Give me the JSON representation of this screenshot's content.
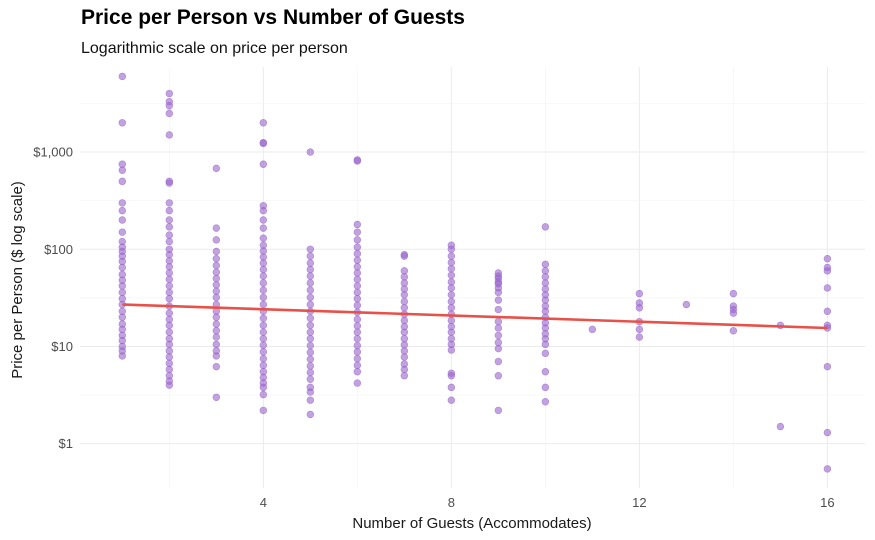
{
  "chart_data": {
    "type": "scatter",
    "title": "Price per Person vs Number of Guests",
    "subtitle": "Logarithmic scale on price per person",
    "xlabel": "Number of Guests (Accommodates)",
    "ylabel": "Price per Person ($ log scale)",
    "x_scale": "linear",
    "y_scale": "log10",
    "xlim": [
      0.1,
      16.8
    ],
    "ylim": [
      0.35,
      7500
    ],
    "x_ticks": [
      4,
      8,
      12,
      16
    ],
    "x_tick_labels": [
      "4",
      "8",
      "12",
      "16"
    ],
    "y_ticks": [
      1,
      10,
      100,
      1000
    ],
    "y_tick_labels": [
      "$1",
      "$10",
      "$100",
      "$1,000"
    ],
    "grid": true,
    "legend": "none",
    "point_color": "#9966CC",
    "trend_color": "#E8514A",
    "series": [
      {
        "kind": "points",
        "points": [
          [
            1,
            6000
          ],
          [
            1,
            2000
          ],
          [
            1,
            750
          ],
          [
            1,
            650
          ],
          [
            1,
            500
          ],
          [
            1,
            300
          ],
          [
            1,
            250
          ],
          [
            1,
            200
          ],
          [
            1,
            150
          ],
          [
            1,
            120
          ],
          [
            1,
            105
          ],
          [
            1,
            95
          ],
          [
            1,
            85
          ],
          [
            1,
            75
          ],
          [
            1,
            65
          ],
          [
            1,
            55
          ],
          [
            1,
            48
          ],
          [
            1,
            42
          ],
          [
            1,
            36
          ],
          [
            1,
            31
          ],
          [
            1,
            27
          ],
          [
            1,
            23
          ],
          [
            1,
            20
          ],
          [
            1,
            17
          ],
          [
            1,
            15
          ],
          [
            1,
            13
          ],
          [
            1,
            11.5
          ],
          [
            1,
            10
          ],
          [
            1,
            9
          ],
          [
            1,
            8
          ],
          [
            2,
            4000
          ],
          [
            2,
            3300
          ],
          [
            2,
            3000
          ],
          [
            2,
            2500
          ],
          [
            2,
            1500
          ],
          [
            2,
            500
          ],
          [
            2,
            480
          ],
          [
            2,
            300
          ],
          [
            2,
            250
          ],
          [
            2,
            200
          ],
          [
            2,
            170
          ],
          [
            2,
            140
          ],
          [
            2,
            120
          ],
          [
            2,
            100
          ],
          [
            2,
            88
          ],
          [
            2,
            76
          ],
          [
            2,
            66
          ],
          [
            2,
            57
          ],
          [
            2,
            49
          ],
          [
            2,
            42
          ],
          [
            2,
            36
          ],
          [
            2,
            31
          ],
          [
            2,
            26
          ],
          [
            2,
            22
          ],
          [
            2,
            19
          ],
          [
            2,
            16.5
          ],
          [
            2,
            14
          ],
          [
            2,
            12
          ],
          [
            2,
            10.5
          ],
          [
            2,
            9
          ],
          [
            2,
            7.8
          ],
          [
            2,
            6.7
          ],
          [
            2,
            5.8
          ],
          [
            2,
            5
          ],
          [
            2,
            4.4
          ],
          [
            2,
            4
          ],
          [
            3,
            680
          ],
          [
            3,
            165
          ],
          [
            3,
            125
          ],
          [
            3,
            95
          ],
          [
            3,
            80
          ],
          [
            3,
            68
          ],
          [
            3,
            58
          ],
          [
            3,
            50
          ],
          [
            3,
            43
          ],
          [
            3,
            37
          ],
          [
            3,
            32
          ],
          [
            3,
            27
          ],
          [
            3,
            23
          ],
          [
            3,
            20
          ],
          [
            3,
            17
          ],
          [
            3,
            14.5
          ],
          [
            3,
            12.5
          ],
          [
            3,
            10.5
          ],
          [
            3,
            9
          ],
          [
            3,
            8
          ],
          [
            3,
            6.2
          ],
          [
            3,
            3
          ],
          [
            4,
            2000
          ],
          [
            4,
            1250
          ],
          [
            4,
            1230
          ],
          [
            4,
            750
          ],
          [
            4,
            280
          ],
          [
            4,
            250
          ],
          [
            4,
            200
          ],
          [
            4,
            165
          ],
          [
            4,
            130
          ],
          [
            4,
            110
          ],
          [
            4,
            96
          ],
          [
            4,
            83
          ],
          [
            4,
            72
          ],
          [
            4,
            62
          ],
          [
            4,
            53
          ],
          [
            4,
            45
          ],
          [
            4,
            38
          ],
          [
            4,
            32
          ],
          [
            4,
            27
          ],
          [
            4,
            23
          ],
          [
            4,
            19.5
          ],
          [
            4,
            16.5
          ],
          [
            4,
            14
          ],
          [
            4,
            12
          ],
          [
            4,
            10.3
          ],
          [
            4,
            8.8
          ],
          [
            4,
            7.5
          ],
          [
            4,
            6.4
          ],
          [
            4,
            5.5
          ],
          [
            4,
            4.8
          ],
          [
            4,
            4.2
          ],
          [
            4,
            3.8
          ],
          [
            4,
            3.2
          ],
          [
            4,
            2.2
          ],
          [
            5,
            1000
          ],
          [
            5,
            100
          ],
          [
            5,
            85
          ],
          [
            5,
            72
          ],
          [
            5,
            62
          ],
          [
            5,
            53
          ],
          [
            5,
            45
          ],
          [
            5,
            38
          ],
          [
            5,
            32
          ],
          [
            5,
            27
          ],
          [
            5,
            23
          ],
          [
            5,
            19.5
          ],
          [
            5,
            16.5
          ],
          [
            5,
            14
          ],
          [
            5,
            12
          ],
          [
            5,
            10.2
          ],
          [
            5,
            8.7
          ],
          [
            5,
            7.4
          ],
          [
            5,
            6.3
          ],
          [
            5,
            5.4
          ],
          [
            5,
            4.6
          ],
          [
            5,
            3.8
          ],
          [
            5,
            3.4
          ],
          [
            5,
            2.8
          ],
          [
            5,
            2
          ],
          [
            6,
            830
          ],
          [
            6,
            810
          ],
          [
            6,
            180
          ],
          [
            6,
            150
          ],
          [
            6,
            125
          ],
          [
            6,
            105
          ],
          [
            6,
            90
          ],
          [
            6,
            77
          ],
          [
            6,
            66
          ],
          [
            6,
            57
          ],
          [
            6,
            49
          ],
          [
            6,
            42
          ],
          [
            6,
            36
          ],
          [
            6,
            31
          ],
          [
            6,
            26.5
          ],
          [
            6,
            22.5
          ],
          [
            6,
            19
          ],
          [
            6,
            16.3
          ],
          [
            6,
            14
          ],
          [
            6,
            12
          ],
          [
            6,
            10.2
          ],
          [
            6,
            8.8
          ],
          [
            6,
            7.5
          ],
          [
            6,
            6.4
          ],
          [
            6,
            5.5
          ],
          [
            6,
            4.2
          ],
          [
            7,
            88
          ],
          [
            7,
            85
          ],
          [
            7,
            60
          ],
          [
            7,
            52
          ],
          [
            7,
            45
          ],
          [
            7,
            39
          ],
          [
            7,
            34
          ],
          [
            7,
            29
          ],
          [
            7,
            25
          ],
          [
            7,
            21.5
          ],
          [
            7,
            18.5
          ],
          [
            7,
            16
          ],
          [
            7,
            14
          ],
          [
            7,
            12
          ],
          [
            7,
            10.4
          ],
          [
            7,
            9
          ],
          [
            7,
            7.8
          ],
          [
            7,
            6.6
          ],
          [
            7,
            5.8
          ],
          [
            7,
            5
          ],
          [
            8,
            110
          ],
          [
            8,
            100
          ],
          [
            8,
            85
          ],
          [
            8,
            73
          ],
          [
            8,
            63
          ],
          [
            8,
            54
          ],
          [
            8,
            46
          ],
          [
            8,
            40
          ],
          [
            8,
            34
          ],
          [
            8,
            29
          ],
          [
            8,
            25
          ],
          [
            8,
            21.5
          ],
          [
            8,
            18.5
          ],
          [
            8,
            16
          ],
          [
            8,
            14
          ],
          [
            8,
            12
          ],
          [
            8,
            10.5
          ],
          [
            8,
            9.2
          ],
          [
            8,
            5.3
          ],
          [
            8,
            5
          ],
          [
            8,
            3.8
          ],
          [
            8,
            2.8
          ],
          [
            9,
            57
          ],
          [
            9,
            53
          ],
          [
            9,
            50
          ],
          [
            9,
            46
          ],
          [
            9,
            44
          ],
          [
            9,
            40
          ],
          [
            9,
            36
          ],
          [
            9,
            30
          ],
          [
            9,
            24
          ],
          [
            9,
            18
          ],
          [
            9,
            15.5
          ],
          [
            9,
            13
          ],
          [
            9,
            11
          ],
          [
            9,
            9.5
          ],
          [
            9,
            7
          ],
          [
            9,
            5
          ],
          [
            9,
            2.2
          ],
          [
            10,
            170
          ],
          [
            10,
            70
          ],
          [
            10,
            60
          ],
          [
            10,
            52
          ],
          [
            10,
            45
          ],
          [
            10,
            39
          ],
          [
            10,
            34
          ],
          [
            10,
            30
          ],
          [
            10,
            26
          ],
          [
            10,
            23
          ],
          [
            10,
            20
          ],
          [
            10,
            17.5
          ],
          [
            10,
            15.5
          ],
          [
            10,
            13.5
          ],
          [
            10,
            12
          ],
          [
            10,
            10.5
          ],
          [
            10,
            8.5
          ],
          [
            10,
            5.5
          ],
          [
            10,
            3.8
          ],
          [
            10,
            2.7
          ],
          [
            11,
            15
          ],
          [
            12,
            35
          ],
          [
            12,
            28
          ],
          [
            12,
            25
          ],
          [
            12,
            18
          ],
          [
            12,
            15
          ],
          [
            12,
            12.5
          ],
          [
            13,
            27
          ],
          [
            14,
            35
          ],
          [
            14,
            26
          ],
          [
            14,
            24
          ],
          [
            14,
            22
          ],
          [
            14,
            14.5
          ],
          [
            15,
            16.5
          ],
          [
            15,
            1.5
          ],
          [
            16,
            80
          ],
          [
            16,
            65
          ],
          [
            16,
            60
          ],
          [
            16,
            40
          ],
          [
            16,
            23
          ],
          [
            16,
            16.5
          ],
          [
            16,
            15.5
          ],
          [
            16,
            6.2
          ],
          [
            16,
            1.3
          ],
          [
            16,
            0.55
          ]
        ]
      },
      {
        "kind": "trend_line",
        "points": [
          [
            1,
            27
          ],
          [
            16,
            15.5
          ]
        ]
      }
    ]
  }
}
